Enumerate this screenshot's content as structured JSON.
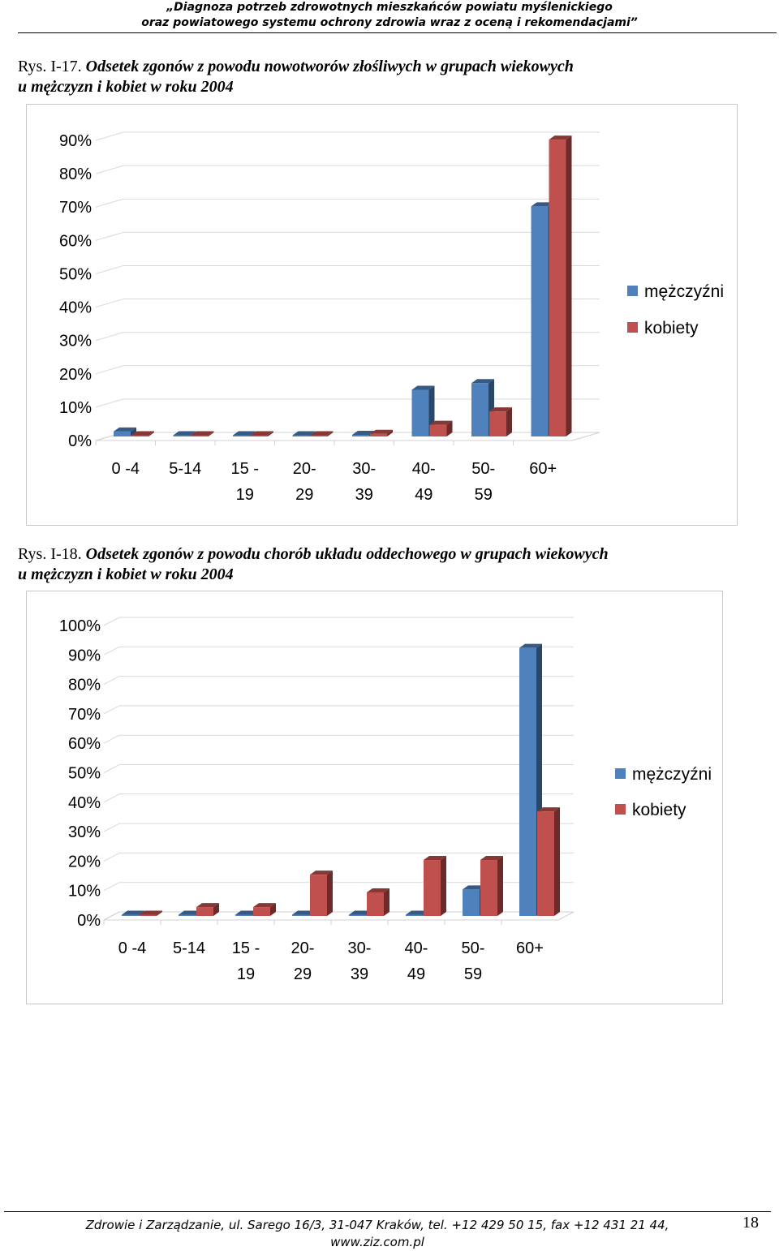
{
  "header": {
    "line1": "„Diagnoza potrzeb zdrowotnych mieszkańców powiatu myślenickiego",
    "line2": "oraz powiatowego systemu ochrony zdrowia wraz z oceną i rekomendacjami”"
  },
  "figures": [
    {
      "number": "Rys. I-17.",
      "title_line1": "Odsetek zgonów z powodu nowotworów złośliwych w grupach wiekowych",
      "title_line2": "u mężczyzn i kobiet w roku 2004"
    },
    {
      "number": "Rys. I-18.",
      "title_line1": "Odsetek zgonów z powodu chorób układu oddechowego w grupach wiekowych",
      "title_line2": "u mężczyzn i kobiet w roku 2004"
    }
  ],
  "colors": {
    "men": "#4f81bd",
    "women": "#c0504d"
  },
  "chart_data": [
    {
      "type": "bar",
      "title": "Odsetek zgonów z powodu nowotworów złośliwych w grupach wiekowych u mężczyzn i kobiet w roku 2004",
      "categories": [
        [
          "0 -4"
        ],
        [
          "5-14"
        ],
        [
          "15 -",
          "19"
        ],
        [
          "20-",
          "29"
        ],
        [
          "30-",
          "39"
        ],
        [
          "40-",
          "49"
        ],
        [
          "50-",
          "59"
        ],
        [
          "60+"
        ]
      ],
      "series": [
        {
          "name": "mężczyźni",
          "values": [
            1.5,
            0.3,
            0.3,
            0.3,
            0.5,
            14,
            16,
            69
          ]
        },
        {
          "name": "kobiety",
          "values": [
            0.3,
            0.3,
            0.3,
            0.3,
            0.8,
            3.5,
            7.5,
            89
          ]
        }
      ],
      "yticks": [
        "0%",
        "10%",
        "20%",
        "30%",
        "40%",
        "50%",
        "60%",
        "70%",
        "80%",
        "90%"
      ],
      "ylim": [
        0,
        90
      ],
      "legend": "right",
      "grid": true
    },
    {
      "type": "bar",
      "title": "Odsetek zgonów z powodu chorób układu oddechowego w grupach wiekowych u mężczyzn i kobiet w roku 2004",
      "categories": [
        [
          "0 -4"
        ],
        [
          "5-14"
        ],
        [
          "15 -",
          "19"
        ],
        [
          "20-",
          "29"
        ],
        [
          "30-",
          "39"
        ],
        [
          "40-",
          "49"
        ],
        [
          "50-",
          "59"
        ],
        [
          "60+"
        ]
      ],
      "series": [
        {
          "name": "mężczyźni",
          "values": [
            0.3,
            0.3,
            0.3,
            0.3,
            0.3,
            0.3,
            9,
            91
          ]
        },
        {
          "name": "kobiety",
          "values": [
            0.3,
            3,
            3,
            14,
            8,
            19,
            19,
            35.5
          ]
        }
      ],
      "yticks": [
        "0%",
        "10%",
        "20%",
        "30%",
        "40%",
        "50%",
        "60%",
        "70%",
        "80%",
        "90%",
        "100%"
      ],
      "ylim": [
        0,
        100
      ],
      "legend": "right",
      "grid": true
    }
  ],
  "footer": {
    "line1": "Zdrowie i Zarządzanie, ul. Sarego 16/3, 31-047 Kraków, tel. +12 429 50 15, fax +12 431 21 44,",
    "line2": "www.ziz.com.pl",
    "page": "18"
  }
}
